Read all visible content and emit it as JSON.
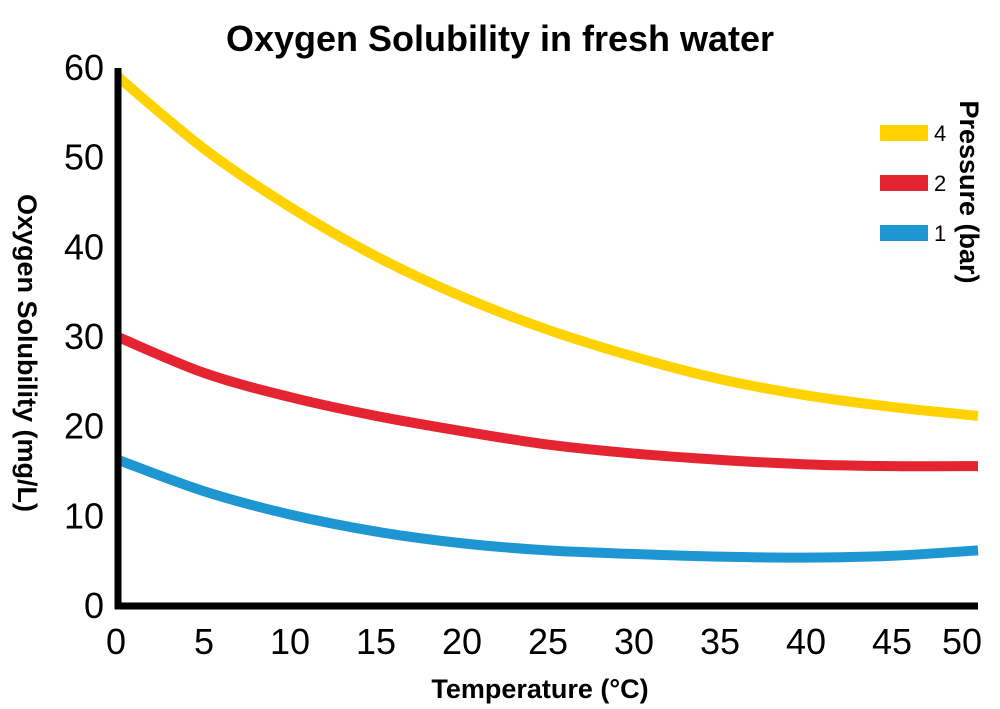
{
  "chart_data": {
    "type": "line",
    "title": "Oxygen Solubility in fresh water",
    "xlabel": "Temperature (°C)",
    "ylabel": "Oxygen Solubility (mg/L)",
    "xlim": [
      0,
      50
    ],
    "ylim": [
      0,
      60
    ],
    "x_ticks": [
      "0",
      "5",
      "10",
      "15",
      "20",
      "25",
      "30",
      "35",
      "40",
      "45",
      "50"
    ],
    "y_ticks": [
      "0",
      "10",
      "20",
      "30",
      "40",
      "50",
      "60"
    ],
    "x": [
      0,
      5,
      10,
      15,
      20,
      25,
      30,
      35,
      40,
      45,
      50
    ],
    "grid": false,
    "legend": {
      "title": "Pressure (bar)",
      "position": "top-right"
    },
    "series": [
      {
        "name": "4",
        "color": "#FFD200",
        "values": [
          59.0,
          51.0,
          44.5,
          39.0,
          34.5,
          30.8,
          27.8,
          25.3,
          23.5,
          22.2,
          21.2
        ]
      },
      {
        "name": "2",
        "color": "#E42531",
        "values": [
          30.0,
          26.0,
          23.3,
          21.2,
          19.5,
          18.0,
          17.0,
          16.3,
          15.8,
          15.6,
          15.6
        ]
      },
      {
        "name": "1",
        "color": "#1E96D2",
        "values": [
          16.3,
          12.8,
          10.2,
          8.3,
          7.0,
          6.2,
          5.8,
          5.5,
          5.4,
          5.6,
          6.2
        ]
      }
    ]
  }
}
